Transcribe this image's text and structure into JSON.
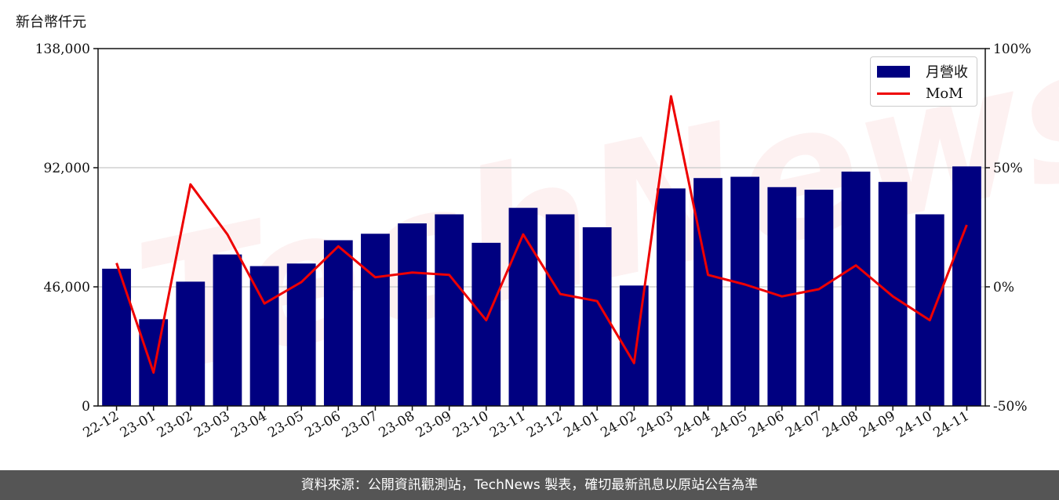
{
  "chart_data": {
    "type": "bar",
    "unit_label": "新台幣仟元",
    "categories": [
      "22-12",
      "23-01",
      "23-02",
      "23-03",
      "23-04",
      "23-05",
      "23-06",
      "23-07",
      "23-08",
      "23-09",
      "23-10",
      "23-11",
      "23-12",
      "24-01",
      "24-02",
      "24-03",
      "24-04",
      "24-05",
      "24-06",
      "24-07",
      "24-08",
      "24-09",
      "24-10",
      "24-11"
    ],
    "series": [
      {
        "name": "月營收",
        "type": "bar",
        "axis": "left",
        "color": "#000080",
        "values": [
          53000,
          33500,
          48000,
          58500,
          54000,
          55000,
          64000,
          66500,
          70500,
          74000,
          63000,
          76500,
          74000,
          69000,
          46500,
          84000,
          88000,
          88500,
          84500,
          83500,
          90500,
          86500,
          74000,
          92500
        ]
      },
      {
        "name": "MoM",
        "type": "line",
        "axis": "right",
        "color": "#ee0000",
        "values": [
          10,
          -36,
          43,
          22,
          -7,
          2,
          17,
          4,
          6,
          5,
          -14,
          22,
          -3,
          -6,
          -32,
          80,
          5,
          1,
          -4,
          -1,
          9,
          -4,
          -14,
          26
        ]
      }
    ],
    "left_axis": {
      "ylim": [
        0,
        138000
      ],
      "ticks": [
        0,
        46000,
        92000,
        138000
      ],
      "tick_labels": [
        "0",
        "46,000",
        "92,000",
        "138,000"
      ]
    },
    "right_axis": {
      "ylim": [
        -50,
        100
      ],
      "ticks": [
        -50,
        0,
        50,
        100
      ],
      "tick_labels": [
        "-50%",
        "0%",
        "50%",
        "100%"
      ]
    },
    "grid": "horizontal",
    "legend_placement": "top-right"
  },
  "watermark": "TechNews",
  "footer": "資料來源：公開資訊觀測站，TechNews 製表，確切最新訊息以原站公告為準"
}
